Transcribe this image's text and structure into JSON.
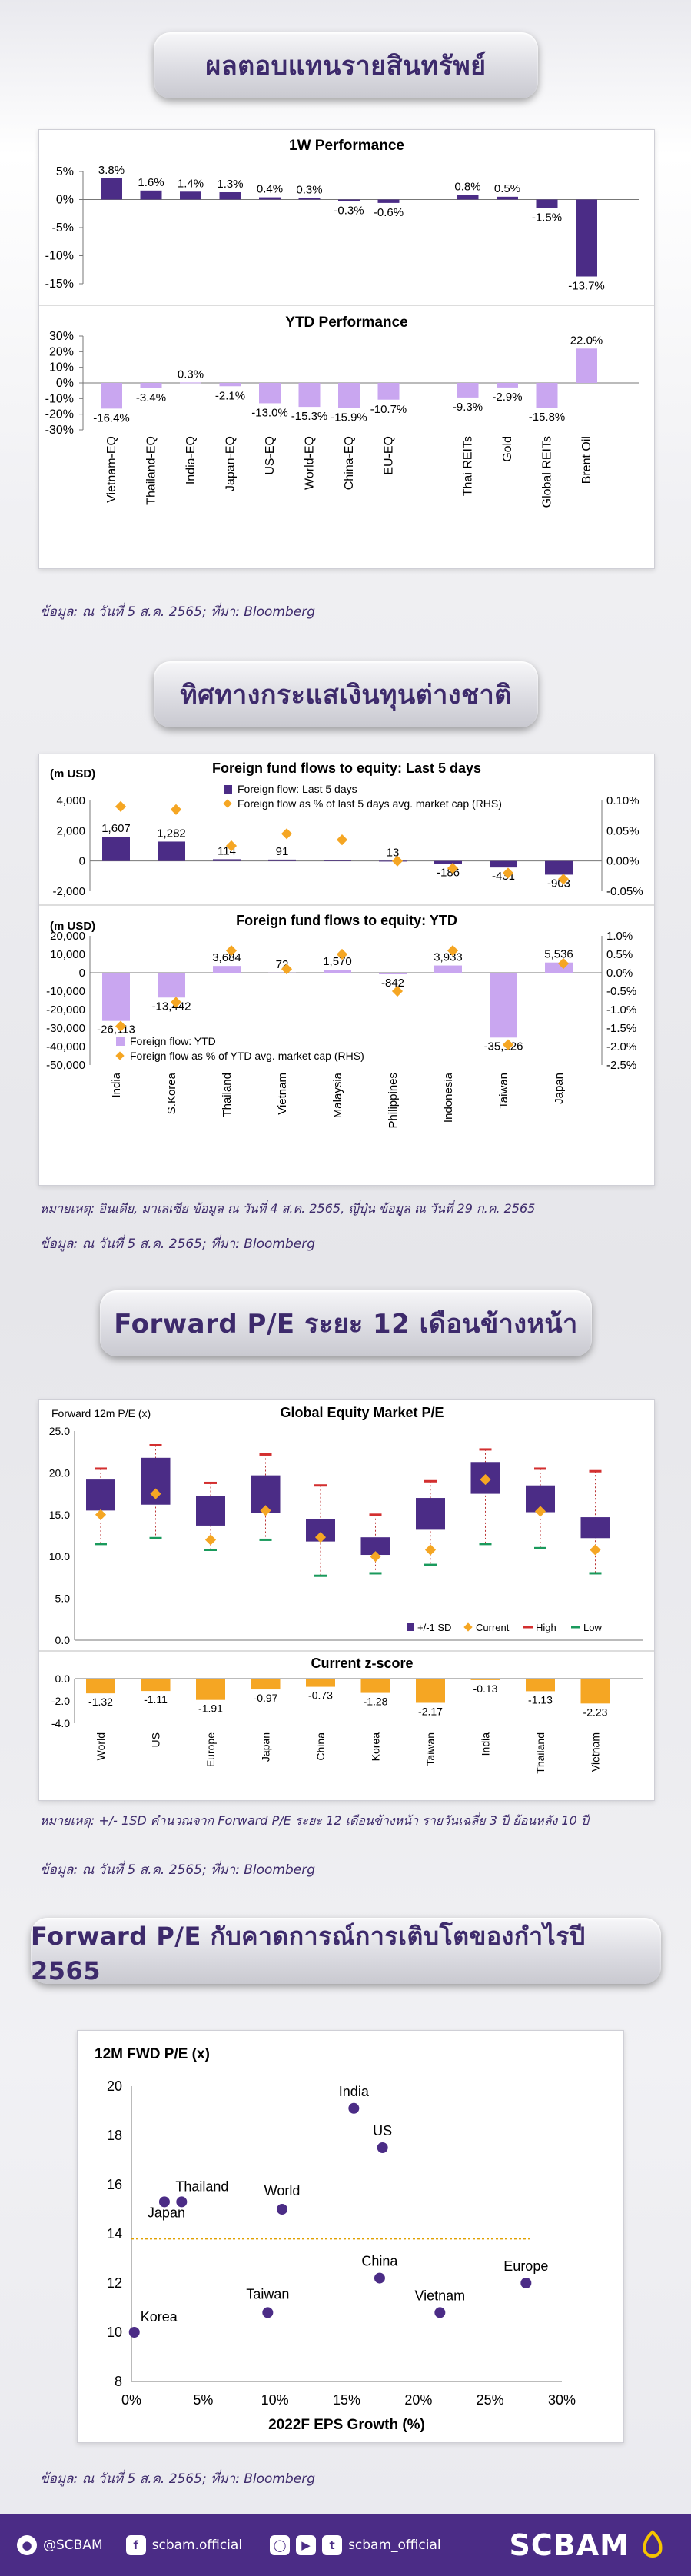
{
  "sections": {
    "perf_title": "ผลตอบแทนรายสินทรัพย์",
    "flow_title": "ทิศทางกระแสเงินทุนต่างชาติ",
    "pe_title": "Forward P/E ระยะ 12 เดือนข้างหน้า",
    "scatter_title": "Forward P/E กับคาดการณ์การเติบโตของกำไรปี 2565"
  },
  "notes": {
    "source_perf": "ข้อมูล: ณ วันที่ 5 ส.ค. 2565; ที่มา: Bloomberg",
    "flow_remark": "หมายเหตุ: อินเดีย, มาเลเซีย ข้อมูล ณ วันที่ 4 ส.ค. 2565, ญี่ปุ่น ข้อมูล ณ วันที่ 29 ก.ค. 2565",
    "source_flow": "ข้อมูล: ณ วันที่ 5 ส.ค. 2565; ที่มา: Bloomberg",
    "pe_remark": "หมายเหตุ: +/- 1SD คำนวณจาก Forward P/E ระยะ 12 เดือนข้างหน้า รายวันเฉลี่ย 3 ปี ย้อนหลัง 10 ปี",
    "source_pe": "ข้อมูล: ณ วันที่ 5 ส.ค. 2565; ที่มา: Bloomberg",
    "source_scatter": "ข้อมูล: ณ วันที่ 5 ส.ค. 2565; ที่มา: Bloomberg"
  },
  "chart_data": [
    {
      "type": "bar",
      "title": "1W Performance",
      "categories": [
        "Vietnam-EQ",
        "Thailand-EQ",
        "India-EQ",
        "Japan-EQ",
        "US-EQ",
        "World-EQ",
        "China-EQ",
        "EU-EQ",
        "",
        "Thai REITs",
        "Gold",
        "Global REITs",
        "Brent Oil"
      ],
      "values": [
        3.8,
        1.6,
        1.4,
        1.3,
        0.4,
        0.3,
        -0.3,
        -0.6,
        null,
        0.8,
        0.5,
        -1.5,
        -13.7
      ],
      "labels": [
        "3.8%",
        "1.6%",
        "1.4%",
        "1.3%",
        "0.4%",
        "0.3%",
        "-0.3%",
        "-0.6%",
        "",
        "0.8%",
        "0.5%",
        "-1.5%",
        "-13.7%"
      ],
      "yticks": [
        "5%",
        "0%",
        "-5%",
        "-10%",
        "-15%"
      ],
      "ylim": [
        -15,
        5
      ],
      "color": "#4b2c86"
    },
    {
      "type": "bar",
      "title": "YTD Performance",
      "categories": [
        "Vietnam-EQ",
        "Thailand-EQ",
        "India-EQ",
        "Japan-EQ",
        "US-EQ",
        "World-EQ",
        "China-EQ",
        "EU-EQ",
        "",
        "Thai REITs",
        "Gold",
        "Global REITs",
        "Brent Oil"
      ],
      "values": [
        -16.4,
        -3.4,
        0.3,
        -2.1,
        -13.0,
        -15.3,
        -15.9,
        -10.7,
        null,
        -9.3,
        -2.9,
        -15.8,
        22.0
      ],
      "labels": [
        "-16.4%",
        "-3.4%",
        "0.3%",
        "-2.1%",
        "-13.0%",
        "-15.3%",
        "-15.9%",
        "-10.7%",
        "",
        "-9.3%",
        "-2.9%",
        "-15.8%",
        "22.0%"
      ],
      "yticks": [
        "30%",
        "20%",
        "10%",
        "0%",
        "-10%",
        "-20%",
        "-30%"
      ],
      "ylim": [
        -30,
        30
      ],
      "color": "#c9a6f0"
    },
    {
      "type": "bar",
      "title": "Foreign fund flows to equity: Last 5 days",
      "unit_label": "(m USD)",
      "series": [
        {
          "name": "Foreign flow: Last 5 days",
          "values": [
            1607,
            1282,
            114,
            91,
            52,
            13,
            -186,
            -431,
            -903
          ],
          "labels": [
            "1,607",
            "1,282",
            "114",
            "91",
            "",
            "13",
            "-186",
            "-431",
            "-903"
          ]
        },
        {
          "name": "Foreign flow as % of last 5 days avg. market cap (RHS)",
          "values": [
            0.09,
            0.085,
            0.025,
            0.045,
            0.035,
            0.0,
            -0.012,
            -0.02,
            -0.03
          ]
        }
      ],
      "yticks": [
        "4,000",
        "2,000",
        "0",
        "-2,000"
      ],
      "ylim": [
        -2000,
        4000
      ],
      "rhs_ticks": [
        "0.10%",
        "0.05%",
        "0.00%",
        "-0.05%"
      ],
      "rhs_lim": [
        -0.05,
        0.1
      ]
    },
    {
      "type": "bar",
      "title": "Foreign fund flows to equity: YTD",
      "unit_label": "(m USD)",
      "categories": [
        "India",
        "S.Korea",
        "Thailand",
        "Vietnam",
        "Malaysia",
        "Philippines",
        "Indonesia",
        "Taiwan",
        "Japan"
      ],
      "series": [
        {
          "name": "Foreign flow: YTD",
          "values": [
            -26113,
            -13442,
            3684,
            72,
            1570,
            -842,
            3933,
            -35126,
            5536
          ],
          "labels": [
            "-26,113",
            "-13,442",
            "3,684",
            "72",
            "1,570",
            "-842",
            "3,933",
            "-35,126",
            "5,536"
          ]
        },
        {
          "name": "Foreign flow as % of YTD avg. market cap (RHS)",
          "values": [
            -1.45,
            -0.8,
            0.6,
            0.1,
            0.5,
            -0.5,
            0.6,
            -1.95,
            0.25
          ]
        }
      ],
      "yticks": [
        "20,000",
        "10,000",
        "0",
        "-10,000",
        "-20,000",
        "-30,000",
        "-40,000",
        "-50,000"
      ],
      "ylim": [
        -50000,
        20000
      ],
      "rhs_ticks": [
        "1.0%",
        "0.5%",
        "0.0%",
        "-0.5%",
        "-1.0%",
        "-1.5%",
        "-2.0%",
        "-2.5%"
      ],
      "rhs_lim": [
        -2.5,
        1.0
      ]
    },
    {
      "type": "bar",
      "title": "Global Equity Market P/E",
      "ylabel": "Forward 12m P/E (x)",
      "categories": [
        "World",
        "US",
        "Europe",
        "Japan",
        "China",
        "Korea",
        "Taiwan",
        "India",
        "Thailand",
        "Vietnam"
      ],
      "sd_low": [
        15.5,
        16.2,
        13.7,
        15.2,
        11.8,
        10.2,
        13.2,
        17.5,
        15.3,
        12.2
      ],
      "sd_high": [
        19.2,
        21.8,
        17.2,
        19.7,
        14.5,
        12.3,
        17.0,
        21.3,
        18.5,
        14.7
      ],
      "current": [
        15.0,
        17.5,
        12.0,
        15.5,
        12.3,
        10.0,
        10.8,
        19.2,
        15.4,
        10.8
      ],
      "high": [
        20.5,
        23.3,
        18.8,
        22.2,
        18.5,
        15.0,
        19.0,
        22.8,
        20.5,
        20.2
      ],
      "low": [
        11.5,
        12.2,
        10.8,
        12.0,
        7.7,
        8.0,
        9.0,
        11.5,
        11.0,
        8.0
      ],
      "yticks": [
        "25.0",
        "20.0",
        "15.0",
        "10.0",
        "5.0",
        "0.0"
      ],
      "ylim": [
        0,
        25
      ],
      "legend": [
        "+/-1 SD",
        "Current",
        "High",
        "Low"
      ]
    },
    {
      "type": "bar",
      "title": "Current z-score",
      "categories": [
        "World",
        "US",
        "Europe",
        "Japan",
        "China",
        "Korea",
        "Taiwan",
        "India",
        "Thailand",
        "Vietnam"
      ],
      "values": [
        -1.32,
        -1.11,
        -1.91,
        -0.97,
        -0.73,
        -1.28,
        -2.17,
        -0.13,
        -1.13,
        -2.23
      ],
      "labels": [
        "-1.32",
        "-1.11",
        "-1.91",
        "-0.97",
        "-0.73",
        "-1.28",
        "-2.17",
        "-0.13",
        "-1.13",
        "-2.23"
      ],
      "yticks": [
        "0.0",
        "-2.0",
        "-4.0"
      ],
      "ylim": [
        -4,
        0
      ]
    },
    {
      "type": "scatter",
      "title": "12M FWD P/E (x)",
      "xlabel": "2022F EPS Growth (%)",
      "points": [
        {
          "name": "India",
          "x": 15.5,
          "y": 19.1
        },
        {
          "name": "US",
          "x": 17.5,
          "y": 17.5
        },
        {
          "name": "Thailand",
          "x": 3.5,
          "y": 15.3
        },
        {
          "name": "Japan",
          "x": 2.3,
          "y": 15.3
        },
        {
          "name": "World",
          "x": 10.5,
          "y": 15.0
        },
        {
          "name": "China",
          "x": 17.3,
          "y": 12.2
        },
        {
          "name": "Europe",
          "x": 27.5,
          "y": 12.0
        },
        {
          "name": "Taiwan",
          "x": 9.5,
          "y": 10.8
        },
        {
          "name": "Vietnam",
          "x": 21.5,
          "y": 10.8
        },
        {
          "name": "Korea",
          "x": 0.2,
          "y": 10.0
        }
      ],
      "average_line": 13.8,
      "xticks": [
        "0%",
        "5%",
        "10%",
        "15%",
        "20%",
        "25%",
        "30%"
      ],
      "yticks": [
        "20",
        "18",
        "16",
        "14",
        "12",
        "10",
        "8"
      ],
      "xlim": [
        0,
        30
      ],
      "ylim": [
        8,
        20
      ]
    }
  ],
  "footer": {
    "line": "@SCBAM",
    "facebook": "scbam.official",
    "social": "scbam_official",
    "brand": "SCBAM"
  },
  "colors": {
    "accent": "#4b2c86",
    "light": "#c9a6f0",
    "orange": "#f5a623",
    "red": "#d32f2f",
    "green": "#1a9a5c"
  }
}
